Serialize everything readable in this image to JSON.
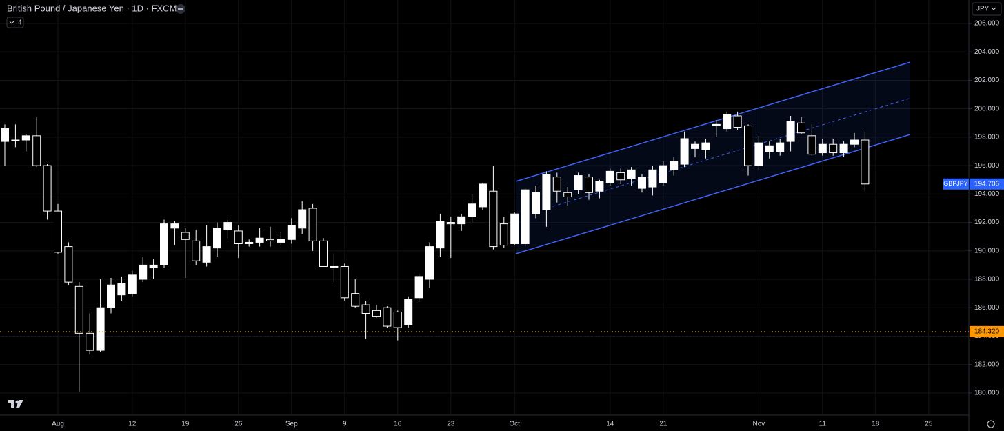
{
  "header": {
    "title": "British Pound / Japanese Yen · 1D · FXCM",
    "indicator_count": "4",
    "currency": "JPY"
  },
  "chart_data": {
    "type": "candlestick",
    "categories": [
      null,
      null,
      null,
      null,
      null,
      "Aug",
      null,
      null,
      null,
      null,
      null,
      null,
      "12",
      null,
      null,
      null,
      null,
      "19",
      null,
      null,
      null,
      null,
      "26",
      null,
      null,
      null,
      null,
      "Sep",
      null,
      null,
      null,
      null,
      "9",
      null,
      null,
      null,
      null,
      "16",
      null,
      null,
      null,
      null,
      "23",
      null,
      null,
      null,
      null,
      null,
      "Oct",
      null,
      null,
      null,
      null,
      null,
      null,
      null,
      null,
      "14",
      null,
      null,
      null,
      null,
      "21",
      null,
      null,
      null,
      null,
      null,
      null,
      null,
      null,
      "Nov",
      null,
      null,
      null,
      null,
      null,
      "11",
      null,
      null,
      null,
      null,
      "18",
      null,
      null,
      null,
      null,
      "25",
      null,
      null
    ],
    "open": [
      197.7,
      197.8,
      197.8,
      198.1,
      196.0,
      192.8,
      190.3,
      187.5,
      184.2,
      183.0,
      186.0,
      186.9,
      187.0,
      188.0,
      188.8,
      189.0,
      191.6,
      191.3,
      190.7,
      189.2,
      190.2,
      191.5,
      191.4,
      190.5,
      190.6,
      190.8,
      190.6,
      190.8,
      191.6,
      193.0,
      190.7,
      188.9,
      188.9,
      187.0,
      186.2,
      185.8,
      186.0,
      185.7,
      184.8,
      186.7,
      188.0,
      190.2,
      192.0,
      191.9,
      192.4,
      193.1,
      194.2,
      191.9,
      190.5,
      190.5,
      192.6,
      192.9,
      195.2,
      194.1,
      194.3,
      195.2,
      194.2,
      194.8,
      195.5,
      195.1,
      194.4,
      194.5,
      194.8,
      195.7,
      196.1,
      197.2,
      197.1,
      198.8,
      198.6,
      199.5,
      198.8,
      196.0,
      197.0,
      197.0,
      197.7,
      199.0,
      198.1,
      196.9,
      197.5,
      196.9,
      197.5,
      197.8,
      null,
      null,
      null,
      null,
      null,
      null,
      null,
      null
    ],
    "high": [
      198.9,
      198.9,
      198.2,
      199.4,
      196.1,
      193.3,
      190.6,
      187.8,
      185.6,
      188.0,
      188.1,
      188.2,
      188.6,
      189.6,
      189.4,
      192.2,
      192.1,
      191.6,
      191.5,
      191.8,
      192.0,
      192.2,
      191.8,
      190.8,
      191.6,
      191.7,
      191.3,
      192.3,
      193.5,
      193.3,
      190.9,
      189.8,
      189.1,
      188.0,
      186.5,
      186.2,
      186.1,
      185.8,
      186.8,
      188.4,
      190.6,
      192.6,
      192.4,
      192.6,
      194.0,
      194.8,
      196.0,
      192.4,
      192.7,
      194.4,
      194.6,
      195.6,
      195.5,
      194.5,
      195.5,
      195.4,
      195.0,
      195.8,
      195.8,
      195.9,
      195.4,
      196.0,
      196.3,
      196.6,
      198.4,
      197.7,
      197.9,
      199.2,
      199.8,
      199.8,
      198.9,
      198.1,
      197.7,
      197.9,
      199.5,
      199.4,
      198.9,
      197.9,
      197.9,
      197.7,
      198.3,
      198.4,
      null,
      null,
      null,
      null,
      null,
      null,
      null,
      null
    ],
    "low": [
      196.0,
      197.3,
      197.0,
      195.9,
      192.2,
      189.8,
      187.6,
      180.1,
      182.7,
      182.9,
      185.6,
      186.5,
      186.8,
      187.8,
      188.0,
      188.8,
      190.4,
      188.1,
      189.0,
      188.9,
      189.6,
      190.9,
      189.5,
      190.3,
      190.3,
      190.3,
      190.4,
      190.5,
      191.2,
      190.0,
      188.9,
      187.8,
      186.5,
      186.0,
      183.8,
      185.3,
      184.6,
      183.7,
      184.6,
      186.4,
      187.4,
      189.6,
      189.5,
      191.4,
      192.0,
      192.9,
      190.1,
      190.2,
      190.4,
      190.3,
      192.3,
      191.7,
      193.4,
      193.2,
      194.0,
      193.6,
      193.7,
      194.6,
      194.7,
      194.6,
      194.1,
      193.9,
      194.6,
      195.3,
      195.9,
      196.6,
      196.5,
      198.0,
      198.4,
      198.5,
      195.3,
      195.7,
      196.5,
      196.7,
      197.0,
      198.2,
      196.7,
      196.7,
      196.7,
      196.6,
      197.3,
      194.2,
      null,
      null,
      null,
      null,
      null,
      null,
      null,
      null
    ],
    "close": [
      198.6,
      197.8,
      198.1,
      196.0,
      192.8,
      189.9,
      187.8,
      184.2,
      183.0,
      186.0,
      187.6,
      187.7,
      188.3,
      189.0,
      189.0,
      191.9,
      191.9,
      190.8,
      189.3,
      190.3,
      191.6,
      192.0,
      190.5,
      190.6,
      190.9,
      190.7,
      190.8,
      191.8,
      192.9,
      190.7,
      188.9,
      188.9,
      186.7,
      186.1,
      185.6,
      185.4,
      184.7,
      184.6,
      186.6,
      188.2,
      190.3,
      192.1,
      191.9,
      192.4,
      193.3,
      194.7,
      190.3,
      190.4,
      192.6,
      194.3,
      194.1,
      195.4,
      194.2,
      193.8,
      195.3,
      194.1,
      194.9,
      195.6,
      195.0,
      195.7,
      195.2,
      195.7,
      196.0,
      196.3,
      197.9,
      197.5,
      197.6,
      198.9,
      199.6,
      198.7,
      196.0,
      197.6,
      197.4,
      197.6,
      199.1,
      198.3,
      196.8,
      197.5,
      196.9,
      197.5,
      197.8,
      194.706,
      null,
      null,
      null,
      null,
      null,
      null,
      null,
      null
    ],
    "up_color": "#ffffff",
    "down_color": "#000000",
    "wick_color": "#ffffff",
    "ylim": [
      178.54,
      207.65
    ],
    "yticks": [
      {
        "value": 180,
        "label": "180.000"
      },
      {
        "value": 182,
        "label": "182.000"
      },
      {
        "value": 184,
        "label": "184.000"
      },
      {
        "value": 186,
        "label": "186.000"
      },
      {
        "value": 188,
        "label": "188.000"
      },
      {
        "value": 190,
        "label": "190.000"
      },
      {
        "value": 192,
        "label": "192.000"
      },
      {
        "value": 194,
        "label": "194.000"
      },
      {
        "value": 196,
        "label": "196.000"
      },
      {
        "value": 198,
        "label": "198.000"
      },
      {
        "value": 200,
        "label": "200.000"
      },
      {
        "value": 202,
        "label": "202.000"
      },
      {
        "value": 204,
        "label": "204.000"
      },
      {
        "value": 206,
        "label": "206.000"
      }
    ],
    "grid": true,
    "level_line": {
      "value": 184.32,
      "label": "184.320",
      "color": "#ff9800"
    },
    "last_price": {
      "symbol": "GBPJPY",
      "value": 194.706,
      "color": "#2962ff"
    }
  }
}
